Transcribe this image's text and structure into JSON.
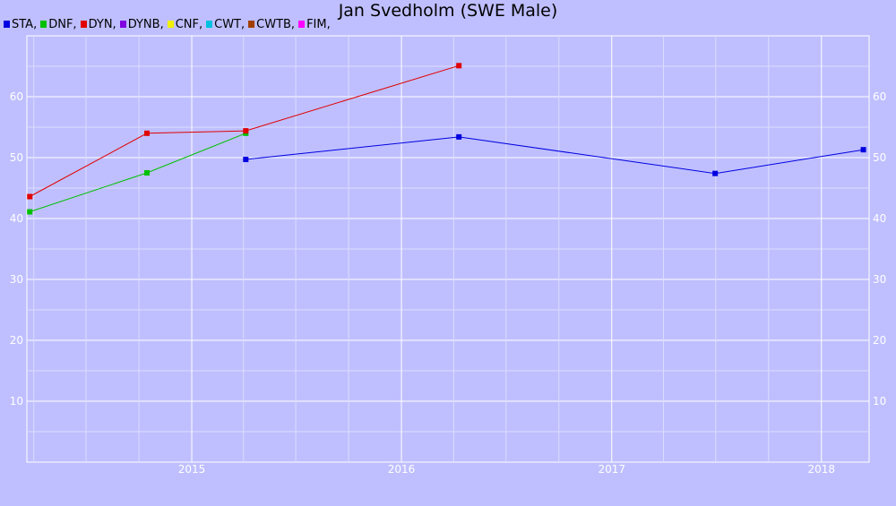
{
  "chart_data": {
    "type": "line",
    "title": "Jan Svedholm (SWE Male)",
    "xlabel": "",
    "ylabel": "",
    "legend_placement": "top-left",
    "x_tick_labels": [
      "2015",
      "2016",
      "2017",
      "2018"
    ],
    "y_tick_labels": [
      "10",
      "20",
      "30",
      "40",
      "50",
      "60"
    ],
    "xlim": [
      "2014-03-20",
      "2018-03-25"
    ],
    "ylim": [
      0,
      70
    ],
    "grid": true,
    "legend": [
      {
        "label": "STA,",
        "color": "#0000e0"
      },
      {
        "label": "DNF,",
        "color": "#00c000"
      },
      {
        "label": "DYN,",
        "color": "#e00000"
      },
      {
        "label": "DYNB,",
        "color": "#8000e0"
      },
      {
        "label": "CNF,",
        "color": "#f0f000"
      },
      {
        "label": "CWT,",
        "color": "#00c0e0"
      },
      {
        "label": "CWTB,",
        "color": "#a04000"
      },
      {
        "label": "FIM,",
        "color": "#ff00ff"
      }
    ],
    "series": [
      {
        "name": "STA",
        "color": "#0000e0",
        "points": [
          {
            "x": "2015-04-05",
            "y": 49.7
          },
          {
            "x": "2016-04-10",
            "y": 53.4
          },
          {
            "x": "2017-06-30",
            "y": 47.4
          },
          {
            "x": "2018-03-15",
            "y": 51.3
          }
        ]
      },
      {
        "name": "DNF",
        "color": "#00c000",
        "points": [
          {
            "x": "2014-03-25",
            "y": 41.1
          },
          {
            "x": "2014-10-15",
            "y": 47.5
          },
          {
            "x": "2015-04-05",
            "y": 54.0
          }
        ]
      },
      {
        "name": "DYN",
        "color": "#e00000",
        "points": [
          {
            "x": "2014-03-25",
            "y": 43.6
          },
          {
            "x": "2014-10-15",
            "y": 54.0
          },
          {
            "x": "2015-04-05",
            "y": 54.4
          },
          {
            "x": "2016-04-10",
            "y": 65.1
          }
        ]
      }
    ]
  }
}
